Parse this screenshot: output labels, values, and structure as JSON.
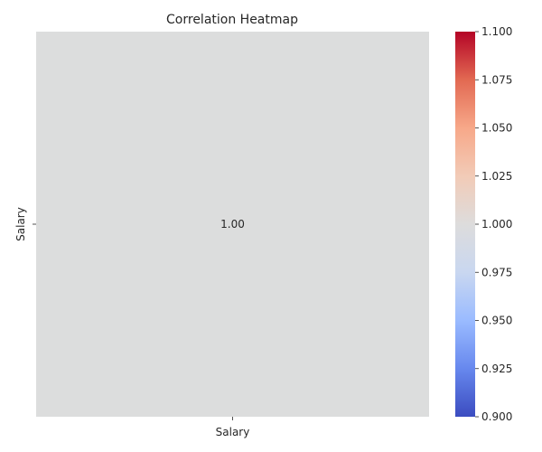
{
  "chart_data": {
    "type": "heatmap",
    "title": "Correlation Heatmap",
    "xlabel": "",
    "ylabel": "",
    "x_categories": [
      "Salary"
    ],
    "y_categories": [
      "Salary"
    ],
    "values": [
      [
        1.0
      ]
    ],
    "annotations": [
      [
        "1.00"
      ]
    ],
    "colormap": "coolwarm",
    "cell_color": "#dcdddd",
    "colorbar": {
      "range": [
        0.9,
        1.1
      ],
      "ticks": [
        0.9,
        0.925,
        0.95,
        0.975,
        1.0,
        1.025,
        1.05,
        1.075,
        1.1
      ],
      "tick_labels": [
        "0.900",
        "0.925",
        "0.950",
        "0.975",
        "1.000",
        "1.025",
        "1.050",
        "1.075",
        "1.100"
      ],
      "colors": [
        "#3b4cc0",
        "#6788ee",
        "#9abbff",
        "#c9d7f0",
        "#dddcdc",
        "#f2cbb7",
        "#f7a889",
        "#e26952",
        "#b40426"
      ]
    }
  }
}
